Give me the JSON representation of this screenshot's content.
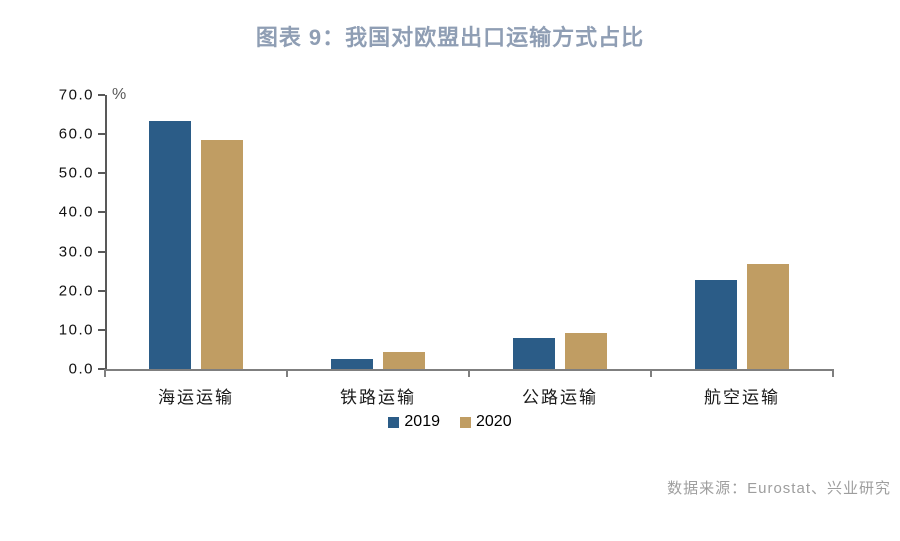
{
  "title": "图表 9：我国对欧盟出口运输方式占比",
  "source": "数据来源：Eurostat、兴业研究",
  "colors": {
    "title_text": "#8f9eb4",
    "series_2019": "#2b5c87",
    "series_2020": "#c09d63",
    "y_axis": "#595959",
    "x_axis": "#7f7f7f",
    "tick_text": "#111111",
    "source_text": "#9e9e9e"
  },
  "chart_data": {
    "type": "bar",
    "categories": [
      "海运运输",
      "铁路运输",
      "公路运输",
      "航空运输"
    ],
    "series": [
      {
        "name": "2019",
        "color": "#2b5c87",
        "values": [
          63.4,
          2.5,
          7.8,
          22.7
        ]
      },
      {
        "name": "2020",
        "color": "#c09d63",
        "values": [
          58.4,
          4.4,
          9.3,
          26.7
        ]
      }
    ],
    "title": "图表 9：我国对欧盟出口运输方式占比",
    "xlabel": "",
    "ylabel": "%",
    "ylim": [
      0,
      70
    ],
    "ytick_step": 10,
    "ytick_labels": [
      "0.0",
      "10.0",
      "20.0",
      "30.0",
      "40.0",
      "50.0",
      "60.0",
      "70.0"
    ],
    "grid": false,
    "legend_position": "bottom-center"
  }
}
